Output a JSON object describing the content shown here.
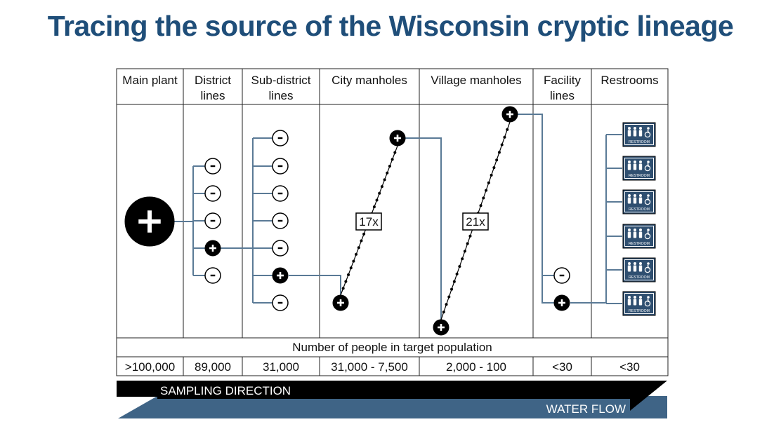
{
  "title": "Tracing the source of the Wisconsin cryptic lineage",
  "colors": {
    "title": "#1f4e79",
    "connector": "#5a7a96",
    "water_flow": "#3f6486",
    "sampling": "#000000"
  },
  "columns": [
    {
      "header": [
        "Main plant"
      ],
      "population": ">100,000"
    },
    {
      "header": [
        "District",
        "lines"
      ],
      "population": "89,000"
    },
    {
      "header": [
        "Sub-district",
        "lines"
      ],
      "population": "31,000"
    },
    {
      "header": [
        "City manholes"
      ],
      "population": "31,000 - 7,500"
    },
    {
      "header": [
        "Village manholes"
      ],
      "population": "2,000 - 100"
    },
    {
      "header": [
        "Facility",
        "lines"
      ],
      "population": "<30"
    },
    {
      "header": [
        "Restrooms"
      ],
      "population": "<30"
    }
  ],
  "population_label": "Number of people in target population",
  "nodes": {
    "main_plant": "+",
    "district": [
      "-",
      "-",
      "-",
      "+",
      "-"
    ],
    "subdistrict": [
      "-",
      "-",
      "-",
      "-",
      "-",
      "+",
      "-"
    ],
    "city": [
      "+",
      "+"
    ],
    "village": [
      "+",
      "+"
    ],
    "facility": [
      "-",
      "+"
    ]
  },
  "fold_changes": [
    "17x",
    "21x"
  ],
  "restroom": {
    "label": "RESTROOM",
    "count": 6,
    "icon": "restroom-sign-icon"
  },
  "arrows": {
    "sampling": "SAMPLING DIRECTION",
    "water": "WATER FLOW"
  }
}
